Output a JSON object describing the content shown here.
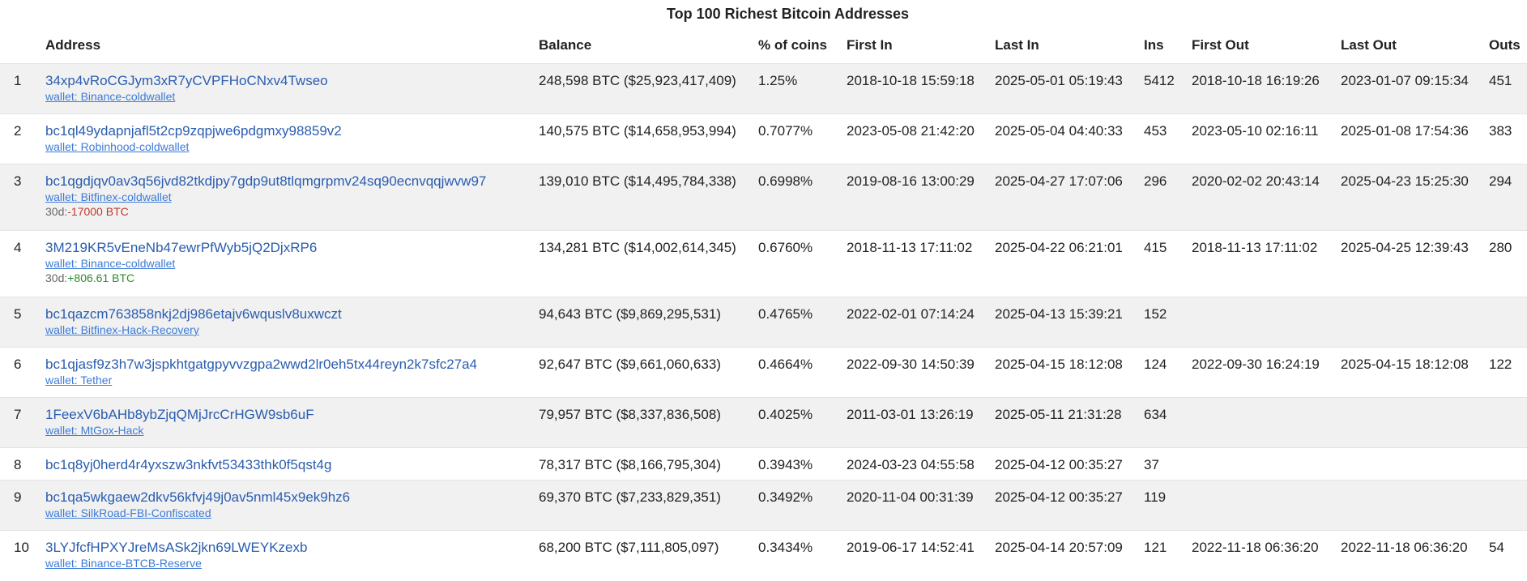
{
  "page": {
    "title": "Top 100 Richest Bitcoin Addresses"
  },
  "table": {
    "headers": {
      "address": "Address",
      "balance": "Balance",
      "percent": "% of coins",
      "first_in": "First In",
      "last_in": "Last In",
      "ins": "Ins",
      "first_out": "First Out",
      "last_out": "Last Out",
      "outs": "Outs"
    },
    "rows": [
      {
        "rank": "1",
        "address": "34xp4vRoCGJym3xR7yCVPFHoCNxv4Twseo",
        "wallet": "wallet: Binance-coldwallet",
        "change_prefix": "",
        "change_value": "",
        "balance": "248,598 BTC ($25,923,417,409)",
        "percent": "1.25%",
        "first_in": "2018-10-18 15:59:18",
        "last_in": "2025-05-01 05:19:43",
        "ins": "5412",
        "first_out": "2018-10-18 16:19:26",
        "last_out": "2023-01-07 09:15:34",
        "outs": "451"
      },
      {
        "rank": "2",
        "address": "bc1ql49ydapnjafl5t2cp9zqpjwe6pdgmxy98859v2",
        "wallet": "wallet: Robinhood-coldwallet",
        "change_prefix": "",
        "change_value": "",
        "balance": "140,575 BTC ($14,658,953,994)",
        "percent": "0.7077%",
        "first_in": "2023-05-08 21:42:20",
        "last_in": "2025-05-04 04:40:33",
        "ins": "453",
        "first_out": "2023-05-10 02:16:11",
        "last_out": "2025-01-08 17:54:36",
        "outs": "383"
      },
      {
        "rank": "3",
        "address": "bc1qgdjqv0av3q56jvd82tkdjpy7gdp9ut8tlqmgrpmv24sq90ecnvqqjwvw97",
        "wallet": "wallet: Bitfinex-coldwallet",
        "change_prefix": "30d:",
        "change_value": "-17000 BTC",
        "change_sign": "neg",
        "balance": "139,010 BTC ($14,495,784,338)",
        "percent": "0.6998%",
        "first_in": "2019-08-16 13:00:29",
        "last_in": "2025-04-27 17:07:06",
        "ins": "296",
        "first_out": "2020-02-02 20:43:14",
        "last_out": "2025-04-23 15:25:30",
        "outs": "294"
      },
      {
        "rank": "4",
        "address": "3M219KR5vEneNb47ewrPfWyb5jQ2DjxRP6",
        "wallet": "wallet: Binance-coldwallet",
        "change_prefix": "30d:",
        "change_value": "+806.61 BTC",
        "change_sign": "pos",
        "balance": "134,281 BTC ($14,002,614,345)",
        "percent": "0.6760%",
        "first_in": "2018-11-13 17:11:02",
        "last_in": "2025-04-22 06:21:01",
        "ins": "415",
        "first_out": "2018-11-13 17:11:02",
        "last_out": "2025-04-25 12:39:43",
        "outs": "280"
      },
      {
        "rank": "5",
        "address": "bc1qazcm763858nkj2dj986etajv6wquslv8uxwczt",
        "wallet": "wallet: Bitfinex-Hack-Recovery",
        "change_prefix": "",
        "change_value": "",
        "balance": "94,643 BTC ($9,869,295,531)",
        "percent": "0.4765%",
        "first_in": "2022-02-01 07:14:24",
        "last_in": "2025-04-13 15:39:21",
        "ins": "152",
        "first_out": "",
        "last_out": "",
        "outs": ""
      },
      {
        "rank": "6",
        "address": "bc1qjasf9z3h7w3jspkhtgatgpyvvzgpa2wwd2lr0eh5tx44reyn2k7sfc27a4",
        "wallet": "wallet: Tether",
        "change_prefix": "",
        "change_value": "",
        "balance": "92,647 BTC ($9,661,060,633)",
        "percent": "0.4664%",
        "first_in": "2022-09-30 14:50:39",
        "last_in": "2025-04-15 18:12:08",
        "ins": "124",
        "first_out": "2022-09-30 16:24:19",
        "last_out": "2025-04-15 18:12:08",
        "outs": "122"
      },
      {
        "rank": "7",
        "address": "1FeexV6bAHb8ybZjqQMjJrcCrHGW9sb6uF",
        "wallet": "wallet: MtGox-Hack",
        "change_prefix": "",
        "change_value": "",
        "balance": "79,957 BTC ($8,337,836,508)",
        "percent": "0.4025%",
        "first_in": "2011-03-01 13:26:19",
        "last_in": "2025-05-11 21:31:28",
        "ins": "634",
        "first_out": "",
        "last_out": "",
        "outs": ""
      },
      {
        "rank": "8",
        "address": "bc1q8yj0herd4r4yxszw3nkfvt53433thk0f5qst4g",
        "wallet": "",
        "change_prefix": "",
        "change_value": "",
        "balance": "78,317 BTC ($8,166,795,304)",
        "percent": "0.3943%",
        "first_in": "2024-03-23 04:55:58",
        "last_in": "2025-04-12 00:35:27",
        "ins": "37",
        "first_out": "",
        "last_out": "",
        "outs": ""
      },
      {
        "rank": "9",
        "address": "bc1qa5wkgaew2dkv56kfvj49j0av5nml45x9ek9hz6",
        "wallet": "wallet: SilkRoad-FBI-Confiscated",
        "change_prefix": "",
        "change_value": "",
        "balance": "69,370 BTC ($7,233,829,351)",
        "percent": "0.3492%",
        "first_in": "2020-11-04 00:31:39",
        "last_in": "2025-04-12 00:35:27",
        "ins": "119",
        "first_out": "",
        "last_out": "",
        "outs": ""
      },
      {
        "rank": "10",
        "address": "3LYJfcfHPXYJreMsASk2jkn69LWEYKzexb",
        "wallet": "wallet: Binance-BTCB-Reserve",
        "change_prefix": "",
        "change_value": "",
        "balance": "68,200 BTC ($7,111,805,097)",
        "percent": "0.3434%",
        "first_in": "2019-06-17 14:52:41",
        "last_in": "2025-04-14 20:57:09",
        "ins": "121",
        "first_out": "2022-11-18 06:36:20",
        "last_out": "2022-11-18 06:36:20",
        "outs": "54"
      }
    ]
  }
}
